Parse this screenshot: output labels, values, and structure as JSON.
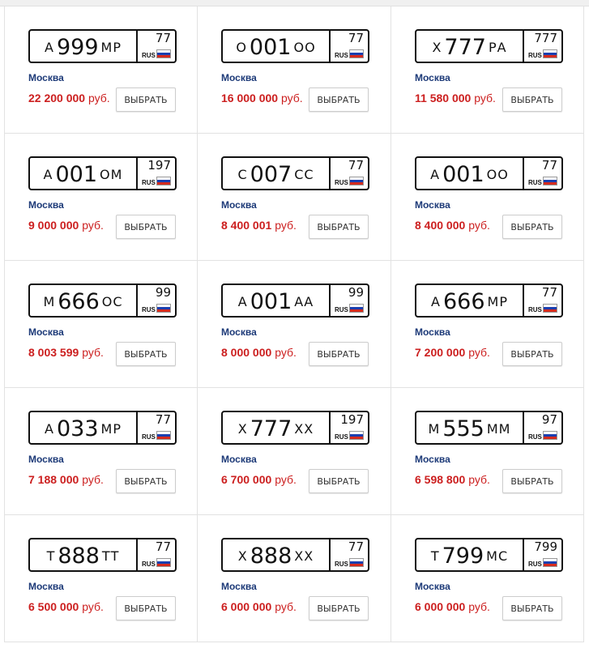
{
  "currency": "руб.",
  "button_label": "ВЫБРАТЬ",
  "country": "RUS",
  "colors": {
    "price": "#cc1f1f",
    "city": "#1d3a78"
  },
  "listings": [
    {
      "l1": "А",
      "d": "999",
      "l2": "МР",
      "region": "77",
      "city": "Москва",
      "price": "22 200 000"
    },
    {
      "l1": "О",
      "d": "001",
      "l2": "ОО",
      "region": "77",
      "city": "Москва",
      "price": "16 000 000"
    },
    {
      "l1": "Х",
      "d": "777",
      "l2": "РА",
      "region": "777",
      "city": "Москва",
      "price": "11 580 000"
    },
    {
      "l1": "А",
      "d": "001",
      "l2": "ОМ",
      "region": "197",
      "city": "Москва",
      "price": "9 000 000"
    },
    {
      "l1": "С",
      "d": "007",
      "l2": "СС",
      "region": "77",
      "city": "Москва",
      "price": "8 400 001"
    },
    {
      "l1": "А",
      "d": "001",
      "l2": "ОО",
      "region": "77",
      "city": "Москва",
      "price": "8 400 000"
    },
    {
      "l1": "М",
      "d": "666",
      "l2": "ОС",
      "region": "99",
      "city": "Москва",
      "price": "8 003 599"
    },
    {
      "l1": "А",
      "d": "001",
      "l2": "АА",
      "region": "99",
      "city": "Москва",
      "price": "8 000 000"
    },
    {
      "l1": "А",
      "d": "666",
      "l2": "МР",
      "region": "77",
      "city": "Москва",
      "price": "7 200 000"
    },
    {
      "l1": "А",
      "d": "033",
      "l2": "МР",
      "region": "77",
      "city": "Москва",
      "price": "7 188 000"
    },
    {
      "l1": "Х",
      "d": "777",
      "l2": "ХХ",
      "region": "197",
      "city": "Москва",
      "price": "6 700 000"
    },
    {
      "l1": "М",
      "d": "555",
      "l2": "ММ",
      "region": "97",
      "city": "Москва",
      "price": "6 598 800"
    },
    {
      "l1": "Т",
      "d": "888",
      "l2": "ТТ",
      "region": "77",
      "city": "Москва",
      "price": "6 500 000"
    },
    {
      "l1": "Х",
      "d": "888",
      "l2": "ХХ",
      "region": "77",
      "city": "Москва",
      "price": "6 000 000"
    },
    {
      "l1": "Т",
      "d": "799",
      "l2": "МС",
      "region": "799",
      "city": "Москва",
      "price": "6 000 000"
    }
  ]
}
